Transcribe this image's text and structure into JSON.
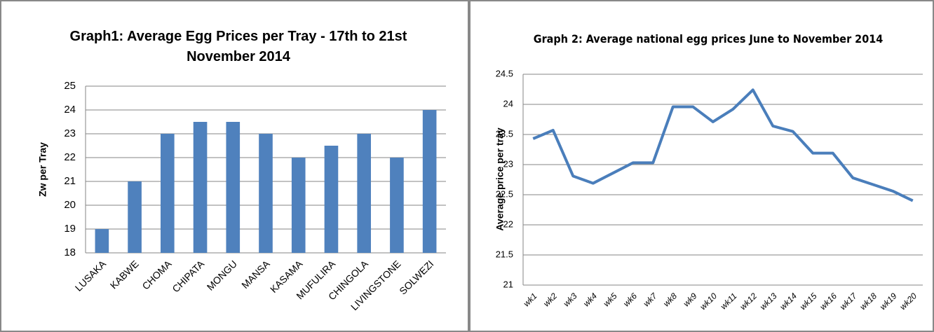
{
  "chart_data": [
    {
      "type": "bar",
      "title": "Graph1: Average Egg Prices per Tray -  17th to 21st November  2014",
      "y_label": "Zw per Tray",
      "categories": [
        "LUSAKA",
        "KABWE",
        "CHOMA",
        "CHIPATA",
        "MONGU",
        "MANSA",
        "KASAMA",
        "MUFULIRA",
        "CHINGOLA",
        "LIVINGSTONE",
        "SOLWEZI"
      ],
      "values": [
        19,
        21,
        23,
        23.5,
        23.5,
        23,
        22,
        22.5,
        23,
        22,
        24
      ],
      "color": "#4f81bd",
      "ylim": [
        18,
        25
      ],
      "yticks": [
        18,
        19,
        20,
        21,
        22,
        23,
        24,
        25
      ],
      "grid": true
    },
    {
      "type": "line",
      "title": "Graph 2: Average national egg prices June to November 2014",
      "y_label": "Average price per tray",
      "categories": [
        "wk1",
        "wk2",
        "wk3",
        "wk4",
        "wk5",
        "wk6",
        "wk7",
        "wk8",
        "wk9",
        "wk10",
        "wk11",
        "wk12",
        "wk13",
        "wk14",
        "wk15",
        "wk16",
        "wk17",
        "wk18",
        "wk19",
        "wk20"
      ],
      "values": [
        23.43,
        23.57,
        22.81,
        22.69,
        22.86,
        23.03,
        23.03,
        23.96,
        23.96,
        23.71,
        23.92,
        24.24,
        23.64,
        23.55,
        23.19,
        23.19,
        22.78,
        22.67,
        22.56,
        22.4
      ],
      "color": "#4a7ebb",
      "ylim": [
        21,
        24.5
      ],
      "yticks": [
        21,
        21.5,
        22,
        22.5,
        23,
        23.5,
        24,
        24.5
      ],
      "grid": true
    }
  ]
}
